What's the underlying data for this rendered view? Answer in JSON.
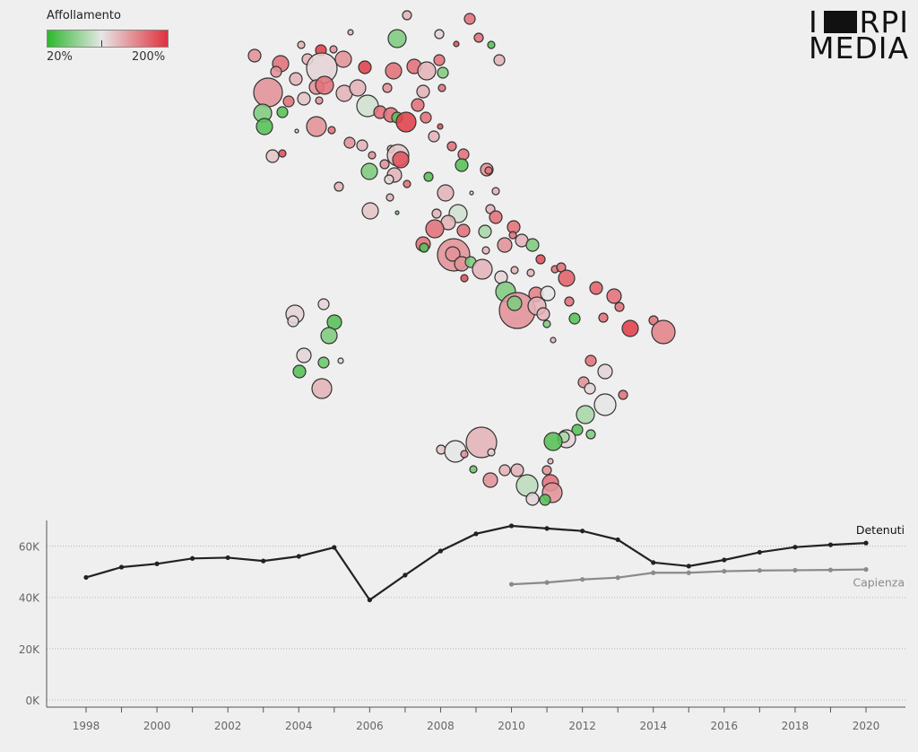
{
  "legend": {
    "title": "Affollamento",
    "min_label": "20%",
    "max_label": "200%",
    "colors": {
      "low": "#2eb82e",
      "mid": "#e6e6e6",
      "high": "#e0303c"
    }
  },
  "logo": {
    "top_left": "I",
    "top_right": "RPI",
    "bottom": "MEDIA"
  },
  "chart_data": [
    {
      "type": "bubble-map",
      "value_label": "Affollamento",
      "color_scale": {
        "min": 20,
        "max": 200,
        "unit": "%"
      }
    },
    {
      "type": "line",
      "x": [
        1998,
        1999,
        2000,
        2001,
        2002,
        2003,
        2004,
        2005,
        2006,
        2007,
        2008,
        2009,
        2010,
        2011,
        2012,
        2013,
        2014,
        2015,
        2016,
        2017,
        2018,
        2019,
        2020
      ],
      "series": [
        {
          "name": "Detenuti",
          "color": "#222222",
          "x": [
            1998,
            1999,
            2000,
            2001,
            2002,
            2003,
            2004,
            2005,
            2006,
            2007,
            2008,
            2009,
            2010,
            2011,
            2012,
            2013,
            2014,
            2015,
            2016,
            2017,
            2018,
            2019,
            2020
          ],
          "values": [
            47800,
            51800,
            53100,
            55200,
            55500,
            54200,
            56000,
            59500,
            39000,
            48700,
            58100,
            64800,
            67900,
            66900,
            65900,
            62500,
            53600,
            52200,
            54600,
            57600,
            59600,
            60500,
            61200
          ]
        },
        {
          "name": "Capienza",
          "color": "#8a8a8a",
          "x": [
            2010,
            2011,
            2012,
            2013,
            2014,
            2015,
            2016,
            2017,
            2018,
            2019,
            2020
          ],
          "values": [
            45100,
            45800,
            47000,
            47700,
            49600,
            49600,
            50200,
            50500,
            50600,
            50700,
            50900
          ]
        }
      ],
      "ylim": [
        0,
        70000
      ],
      "yticks": [
        0,
        20000,
        40000,
        60000
      ],
      "ytick_labels": [
        "0K",
        "20K",
        "40K",
        "60K"
      ],
      "xticks": [
        1998,
        2000,
        2002,
        2004,
        2006,
        2008,
        2010,
        2012,
        2014,
        2016,
        2018,
        2020
      ],
      "grid": true
    }
  ]
}
